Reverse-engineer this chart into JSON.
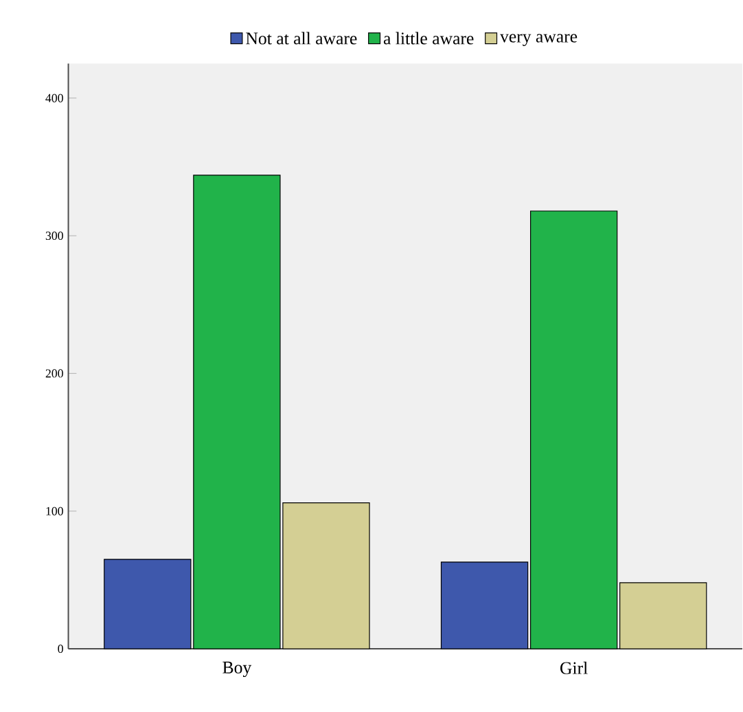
{
  "chart_data": {
    "type": "bar",
    "categories": [
      "Boy",
      "Girl"
    ],
    "series": [
      {
        "name": "Not at all aware",
        "color": "#3e58ac",
        "values": [
          65,
          63
        ]
      },
      {
        "name": "a little aware",
        "color": "#21b34a",
        "values": [
          344,
          318
        ]
      },
      {
        "name": "very aware",
        "color": "#d4cf94",
        "values": [
          106,
          48
        ]
      }
    ],
    "ylim": [
      0,
      425
    ],
    "yticks": [
      0,
      100,
      200,
      300,
      400
    ],
    "grid": false,
    "legend": "top"
  }
}
